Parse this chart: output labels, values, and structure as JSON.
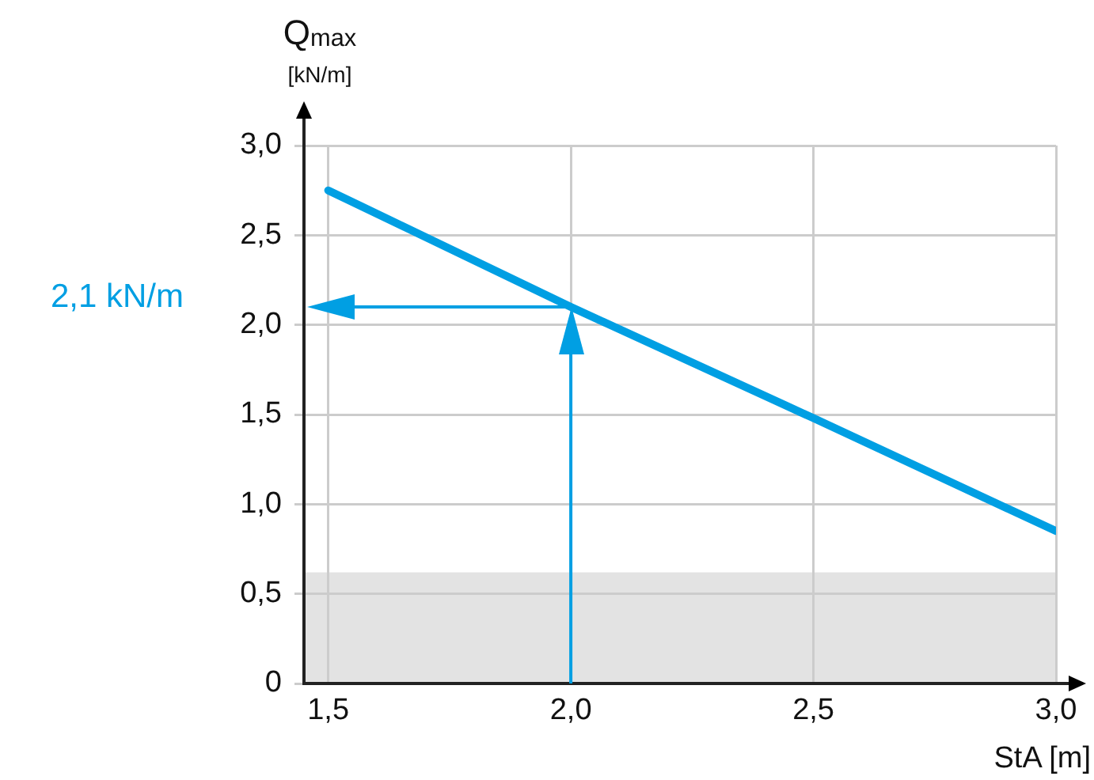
{
  "chart_data": {
    "type": "line",
    "xlabel": "StA [m]",
    "ylabel": "Q$_{max}$ [kN/m]",
    "x": [
      1.5,
      2.0,
      2.5,
      3.0
    ],
    "series": [
      {
        "color": "#009fe3",
        "values": [
          2.75,
          2.1,
          1.48,
          0.85
        ]
      }
    ],
    "xlim": [
      1.45,
      3.0
    ],
    "xticks": [
      {
        "value": 1.5,
        "label": "1,5"
      },
      {
        "value": 2.0,
        "label": "2,0"
      },
      {
        "value": 2.5,
        "label": "2,5"
      },
      {
        "value": 3.0,
        "label": "3,0"
      }
    ],
    "ylim": [
      0,
      3.0
    ],
    "yticks": [
      {
        "value": 0,
        "label": "0"
      },
      {
        "value": 0.5,
        "label": "0,5"
      },
      {
        "value": 1.0,
        "label": "1,0"
      },
      {
        "value": 1.5,
        "label": "1,5"
      },
      {
        "value": 2.0,
        "label": "2,0"
      },
      {
        "value": 2.5,
        "label": "2,5"
      },
      {
        "value": 3.0,
        "label": "3,0"
      }
    ],
    "bands": [
      {
        "axis": "y",
        "from": 0,
        "to": 0.62,
        "color": "#e3e3e3"
      }
    ],
    "ref_lines": [
      {
        "axis": "y",
        "value": 2.1,
        "label": "2,1 kN/m"
      },
      {
        "axis": "x",
        "value": 2.0
      }
    ],
    "grid": true,
    "marker": "none",
    "line_style": "solid",
    "legend": false
  }
}
